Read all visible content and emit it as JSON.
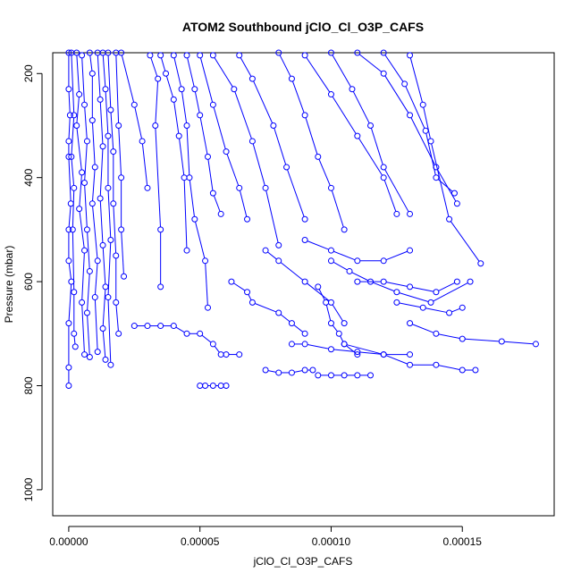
{
  "chart_data": {
    "type": "line",
    "title": "ATOM2 Southbound jClO_Cl_O3P_CAFS",
    "xlabel": "jClO_Cl_O3P_CAFS",
    "ylabel": "Pressure (mbar)",
    "xlim": [
      -6.1e-06,
      0.000185
    ],
    "ylim": [
      1050,
      160
    ],
    "y_reversed": true,
    "grid": false,
    "legend": "none",
    "x_ticks": [
      0,
      5e-05,
      0.0001,
      0.00015
    ],
    "x_tick_labels": [
      "0.00000",
      "0.00005",
      "0.00010",
      "0.00015"
    ],
    "y_ticks": [
      200,
      400,
      600,
      800,
      1000
    ],
    "y_tick_labels": [
      "200",
      "400",
      "600",
      "800",
      "1000"
    ],
    "color": "#0000ff",
    "series": [
      {
        "x": [
          0,
          0,
          5e-07,
          0,
          0,
          8e-07,
          0,
          0,
          1e-06,
          0,
          0,
          0
        ],
        "y": [
          160,
          230,
          280,
          330,
          360,
          450,
          500,
          560,
          600,
          680,
          765,
          800
        ]
      },
      {
        "x": [
          1e-06,
          2e-06,
          1e-06,
          2e-06,
          1.5e-06,
          2e-06,
          2e-06,
          2.5e-06
        ],
        "y": [
          160,
          280,
          360,
          420,
          500,
          620,
          700,
          725
        ]
      },
      {
        "x": [
          3e-06,
          4e-06,
          3e-06,
          5e-06,
          4e-06,
          6e-06,
          5e-06,
          6e-06
        ],
        "y": [
          160,
          240,
          300,
          390,
          460,
          540,
          640,
          740
        ]
      },
      {
        "x": [
          5e-06,
          6e-06,
          7e-06,
          6e-06,
          7e-06,
          8e-06,
          7e-06,
          8e-06
        ],
        "y": [
          165,
          260,
          330,
          410,
          500,
          580,
          660,
          745
        ]
      },
      {
        "x": [
          8e-06,
          9e-06,
          9e-06,
          1e-05,
          9e-06,
          1.1e-05,
          1e-05,
          1.1e-05
        ],
        "y": [
          160,
          200,
          290,
          380,
          450,
          560,
          630,
          735
        ]
      },
      {
        "x": [
          1.1e-05,
          1.2e-05,
          1.3e-05,
          1.2e-05,
          1.3e-05,
          1.4e-05,
          1.3e-05,
          1.4e-05
        ],
        "y": [
          160,
          250,
          340,
          440,
          530,
          610,
          690,
          750
        ]
      },
      {
        "x": [
          1.3e-05,
          1.4e-05,
          1.5e-05,
          1.5e-05,
          1.6e-05,
          1.5e-05,
          1.6e-05
        ],
        "y": [
          160,
          230,
          320,
          420,
          520,
          630,
          760
        ]
      },
      {
        "x": [
          1.5e-05,
          1.6e-05,
          1.7e-05,
          1.7e-05,
          1.8e-05,
          1.8e-05,
          1.9e-05
        ],
        "y": [
          160,
          270,
          350,
          450,
          550,
          640,
          700
        ]
      },
      {
        "x": [
          1.8e-05,
          1.9e-05,
          2e-05,
          2e-05,
          2.1e-05
        ],
        "y": [
          160,
          300,
          400,
          500,
          590
        ]
      },
      {
        "x": [
          2e-05,
          2.5e-05,
          2.8e-05,
          3e-05
        ],
        "y": [
          160,
          260,
          330,
          420
        ]
      },
      {
        "x": [
          3.1e-05,
          3.4e-05,
          3.3e-05,
          3.5e-05,
          3.5e-05
        ],
        "y": [
          165,
          210,
          300,
          500,
          610
        ]
      },
      {
        "x": [
          3.5e-05,
          3.7e-05,
          4e-05,
          4.2e-05,
          4.4e-05,
          4.5e-05
        ],
        "y": [
          165,
          200,
          250,
          320,
          400,
          540
        ]
      },
      {
        "x": [
          4e-05,
          4.3e-05,
          4.5e-05,
          4.6e-05,
          4.8e-05,
          5.2e-05,
          5.3e-05
        ],
        "y": [
          165,
          230,
          300,
          400,
          480,
          560,
          650
        ]
      },
      {
        "x": [
          4.5e-05,
          4.8e-05,
          5e-05,
          5.3e-05,
          5.5e-05,
          5.8e-05
        ],
        "y": [
          165,
          230,
          280,
          360,
          430,
          470
        ]
      },
      {
        "x": [
          5e-05,
          5.5e-05,
          6e-05,
          6.5e-05,
          6.8e-05
        ],
        "y": [
          165,
          260,
          350,
          420,
          480
        ]
      },
      {
        "x": [
          5.5e-05,
          6.3e-05,
          7e-05,
          7.5e-05,
          8e-05
        ],
        "y": [
          165,
          230,
          330,
          420,
          530
        ]
      },
      {
        "x": [
          6.5e-05,
          7e-05,
          7.8e-05,
          8.3e-05,
          9e-05
        ],
        "y": [
          165,
          210,
          300,
          380,
          480
        ]
      },
      {
        "x": [
          8e-05,
          8.5e-05,
          9e-05,
          9.5e-05,
          0.0001,
          0.000105
        ],
        "y": [
          160,
          210,
          280,
          360,
          420,
          500
        ]
      },
      {
        "x": [
          9e-05,
          0.0001,
          0.00011,
          0.00012,
          0.000125
        ],
        "y": [
          165,
          240,
          320,
          400,
          470
        ]
      },
      {
        "x": [
          0.0001,
          0.000108,
          0.000115,
          0.00012,
          0.00013
        ],
        "y": [
          160,
          230,
          300,
          380,
          470
        ]
      },
      {
        "x": [
          0.00011,
          0.00012,
          0.00013,
          0.00014,
          0.000148
        ],
        "y": [
          160,
          200,
          280,
          380,
          450
        ]
      },
      {
        "x": [
          0.00012,
          0.000128,
          0.000136,
          0.00014,
          0.000147
        ],
        "y": [
          160,
          220,
          310,
          400,
          430
        ]
      },
      {
        "x": [
          0.00013,
          0.000135,
          0.000138,
          0.000145,
          0.000157
        ],
        "y": [
          165,
          260,
          330,
          480,
          565
        ]
      },
      {
        "x": [
          2.5e-05,
          3e-05,
          3.5e-05,
          4e-05,
          4.5e-05,
          5e-05,
          5.5e-05,
          5.8e-05,
          6e-05,
          6.5e-05
        ],
        "y": [
          685,
          685,
          685,
          685,
          700,
          700,
          720,
          740,
          740,
          740
        ]
      },
      {
        "x": [
          5e-05,
          5.2e-05,
          5.5e-05,
          5.8e-05,
          6e-05
        ],
        "y": [
          800,
          800,
          800,
          800,
          800
        ]
      },
      {
        "x": [
          7.5e-05,
          8e-05,
          8.5e-05,
          9e-05,
          9.3e-05
        ],
        "y": [
          770,
          775,
          775,
          770,
          770
        ]
      },
      {
        "x": [
          9.5e-05,
          0.0001,
          0.000105,
          0.00011,
          0.000115
        ],
        "y": [
          780,
          780,
          780,
          780,
          780
        ]
      },
      {
        "x": [
          8.5e-05,
          9e-05,
          0.0001,
          0.00011,
          0.00012,
          0.00013
        ],
        "y": [
          720,
          720,
          730,
          735,
          740,
          740
        ]
      },
      {
        "x": [
          0.000105,
          0.00012,
          0.00013,
          0.00014,
          0.00015,
          0.000155
        ],
        "y": [
          720,
          740,
          760,
          760,
          770,
          770
        ]
      },
      {
        "x": [
          0.00013,
          0.00014,
          0.00015,
          0.000165,
          0.000178
        ],
        "y": [
          680,
          700,
          710,
          715,
          720
        ]
      },
      {
        "x": [
          0.000125,
          0.000135,
          0.000145,
          0.00015
        ],
        "y": [
          640,
          650,
          660,
          650
        ]
      },
      {
        "x": [
          0.00011,
          0.00012,
          0.00013,
          0.00014,
          0.000148
        ],
        "y": [
          600,
          600,
          610,
          620,
          600
        ]
      },
      {
        "x": [
          0.0001,
          0.000107,
          0.000115,
          0.000125,
          0.000138,
          0.000153
        ],
        "y": [
          560,
          580,
          600,
          620,
          640,
          600
        ]
      },
      {
        "x": [
          9e-05,
          0.0001,
          0.00011,
          0.00012,
          0.00013
        ],
        "y": [
          520,
          540,
          560,
          560,
          540
        ]
      },
      {
        "x": [
          7.5e-05,
          8e-05,
          9e-05,
          0.0001,
          0.000105
        ],
        "y": [
          540,
          560,
          600,
          640,
          680
        ]
      },
      {
        "x": [
          6.2e-05,
          6.8e-05,
          7e-05,
          8e-05,
          8.5e-05,
          9e-05
        ],
        "y": [
          600,
          620,
          640,
          660,
          680,
          700
        ]
      },
      {
        "x": [
          9.5e-05,
          9.8e-05,
          0.0001,
          0.000103,
          0.000105,
          0.00011
        ],
        "y": [
          610,
          640,
          680,
          700,
          720,
          740
        ]
      }
    ]
  }
}
